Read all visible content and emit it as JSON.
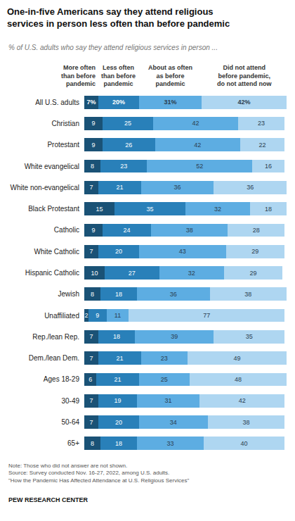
{
  "chart_data": {
    "type": "bar",
    "orientation": "horizontal",
    "stacked": true,
    "data_labels": true,
    "tick_labels": "y",
    "grid": false,
    "title": "One-in-five Americans say they attend religious\nservices in person less often than before pandemic",
    "subtitle": "% of U.S. adults who say they attend religious services in person ...",
    "annotations": [
      "Note: Those who did not answer are not shown.\nSource: Survey conducted Nov. 16-27, 2022, among U.S. adults.\n\"How the Pandemic Has Affected Attendance at U.S. Religious Services\"",
      "PEW RESEARCH CENTER"
    ],
    "categories": [
      "All U.S. adults",
      "Christian",
      "Protestant",
      "White evangelical",
      "White non-evangelical",
      "Black Protestant",
      "Catholic",
      "White Catholic",
      "Hispanic Catholic",
      "Jewish",
      "Unaffiliated",
      "Rep./lean Rep.",
      "Dem./lean Dem.",
      "Ages 18-29",
      "30-49",
      "50-64",
      "65+"
    ],
    "xlim": [
      0,
      100
    ],
    "series": [
      {
        "name": "More often\nthan before\npandemic",
        "color": "#1a5276",
        "values": [
          7,
          9,
          9,
          8,
          7,
          15,
          9,
          7,
          10,
          8,
          2,
          7,
          7,
          6,
          7,
          7,
          8
        ],
        "value_labels": [
          "7%",
          "9",
          "9",
          "8",
          "7",
          "15",
          "9",
          "7",
          "10",
          "8",
          "2",
          "7",
          "7",
          "6",
          "7",
          "7",
          "8"
        ]
      },
      {
        "name": "Less often\nthan before\npandemic",
        "color": "#2980b9",
        "values": [
          20,
          25,
          26,
          23,
          21,
          35,
          24,
          20,
          27,
          18,
          9,
          18,
          21,
          21,
          19,
          20,
          18
        ],
        "value_labels": [
          "20%",
          "25",
          "26",
          "23",
          "21",
          "35",
          "24",
          "20",
          "27",
          "18",
          "9",
          "18",
          "21",
          "21",
          "19",
          "20",
          "18"
        ]
      },
      {
        "name": "About as often\nas before\npandemic",
        "color": "#5dade2",
        "values": [
          31,
          42,
          42,
          52,
          36,
          32,
          38,
          43,
          32,
          36,
          11,
          39,
          23,
          25,
          31,
          34,
          33
        ],
        "value_labels": [
          "31%",
          "42",
          "42",
          "52",
          "36",
          "32",
          "38",
          "43",
          "32",
          "36",
          "11",
          "39",
          "23",
          "25",
          "31",
          "34",
          "33"
        ]
      },
      {
        "name": "Did not attend\nbefore pandemic,\ndo not attend now",
        "color": "#aed6f1",
        "values": [
          42,
          23,
          22,
          16,
          36,
          18,
          28,
          29,
          29,
          38,
          77,
          35,
          49,
          48,
          42,
          38,
          40
        ],
        "value_labels": [
          "42%",
          "23",
          "22",
          "16",
          "36",
          "18",
          "28",
          "29",
          "29",
          "38",
          "77",
          "35",
          "49",
          "48",
          "42",
          "38",
          "40"
        ]
      }
    ]
  }
}
